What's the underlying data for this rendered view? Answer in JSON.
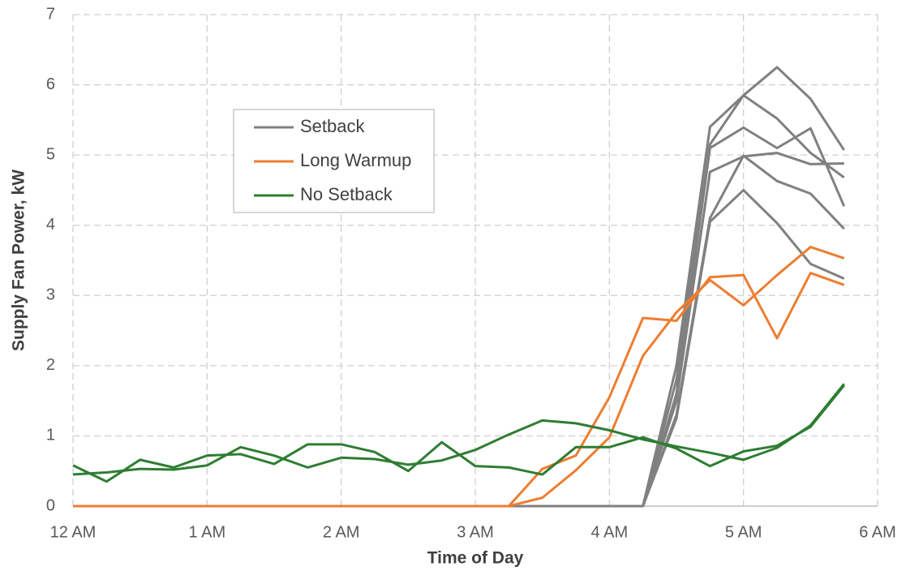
{
  "chart_data": {
    "type": "line",
    "xlabel": "Time of Day",
    "ylabel": "Supply Fan Power, kW",
    "x": [
      0,
      0.25,
      0.5,
      0.75,
      1,
      1.25,
      1.5,
      1.75,
      2,
      2.25,
      2.5,
      2.75,
      3,
      3.25,
      3.5,
      3.75,
      4,
      4.25,
      4.5,
      4.75,
      5,
      5.25,
      5.5,
      5.75
    ],
    "xlim": [
      0,
      6
    ],
    "xticks": [
      {
        "value": 0,
        "label": "12 AM"
      },
      {
        "value": 1,
        "label": "1 AM"
      },
      {
        "value": 2,
        "label": "2 AM"
      },
      {
        "value": 3,
        "label": "3 AM"
      },
      {
        "value": 4,
        "label": "4 AM"
      },
      {
        "value": 5,
        "label": "5 AM"
      },
      {
        "value": 6,
        "label": "6 AM"
      }
    ],
    "ylim": [
      0,
      7
    ],
    "yticks": [
      0,
      1,
      2,
      3,
      4,
      5,
      6,
      7
    ],
    "grid": true,
    "series": [
      {
        "name": "Setback",
        "color": "#808080",
        "lines": [
          [
            0,
            0,
            0,
            0,
            0,
            0,
            0,
            0,
            0,
            0,
            0,
            0,
            0,
            0,
            0,
            0,
            0,
            0,
            2.0,
            5.4,
            5.85,
            6.25,
            5.8,
            5.07
          ],
          [
            0,
            0,
            0,
            0,
            0,
            0,
            0,
            0,
            0,
            0,
            0,
            0,
            0,
            0,
            0,
            0,
            0,
            0,
            1.8,
            5.15,
            5.85,
            5.52,
            5.03,
            4.68
          ],
          [
            0,
            0,
            0,
            0,
            0,
            0,
            0,
            0,
            0,
            0,
            0,
            0,
            0,
            0,
            0,
            0,
            0,
            0,
            1.6,
            5.1,
            5.39,
            5.1,
            5.38,
            4.27
          ],
          [
            0,
            0,
            0,
            0,
            0,
            0,
            0,
            0,
            0,
            0,
            0,
            0,
            0,
            0,
            0,
            0,
            0,
            0,
            1.5,
            4.76,
            4.98,
            5.03,
            4.87,
            4.88
          ],
          [
            0,
            0,
            0,
            0,
            0,
            0,
            0,
            0,
            0,
            0,
            0,
            0,
            0,
            0,
            0,
            0,
            0,
            0,
            1.3,
            4.1,
            4.99,
            4.63,
            4.45,
            3.95
          ],
          [
            0,
            0,
            0,
            0,
            0,
            0,
            0,
            0,
            0,
            0,
            0,
            0,
            0,
            0,
            0,
            0,
            0,
            0,
            1.25,
            4.05,
            4.5,
            4.03,
            3.45,
            3.24
          ]
        ]
      },
      {
        "name": "Long Warmup",
        "color": "#ed7d31",
        "lines": [
          [
            0,
            0,
            0,
            0,
            0,
            0,
            0,
            0,
            0,
            0,
            0,
            0,
            0,
            0,
            0.53,
            0.72,
            1.55,
            2.68,
            2.64,
            3.26,
            3.29,
            2.39,
            3.32,
            3.15
          ],
          [
            0,
            0,
            0,
            0,
            0,
            0,
            0,
            0,
            0,
            0,
            0,
            0,
            0,
            0,
            0.12,
            0.51,
            0.98,
            2.14,
            2.76,
            3.22,
            2.86,
            3.29,
            3.69,
            3.53
          ]
        ]
      },
      {
        "name": "No Setback",
        "color": "#2e7d32",
        "lines": [
          [
            0.58,
            0.35,
            0.66,
            0.55,
            0.72,
            0.74,
            0.6,
            0.88,
            0.88,
            0.77,
            0.5,
            0.91,
            0.57,
            0.55,
            0.45,
            0.84,
            0.84,
            0.98,
            0.82,
            0.57,
            0.78,
            0.86,
            1.13,
            1.72
          ],
          [
            0.45,
            0.48,
            0.53,
            0.52,
            0.58,
            0.84,
            0.72,
            0.55,
            0.69,
            0.67,
            0.59,
            0.65,
            0.8,
            1.02,
            1.22,
            1.18,
            1.08,
            0.95,
            0.85,
            0.76,
            0.66,
            0.83,
            1.15,
            1.74
          ]
        ]
      }
    ],
    "legend": "upper left"
  }
}
